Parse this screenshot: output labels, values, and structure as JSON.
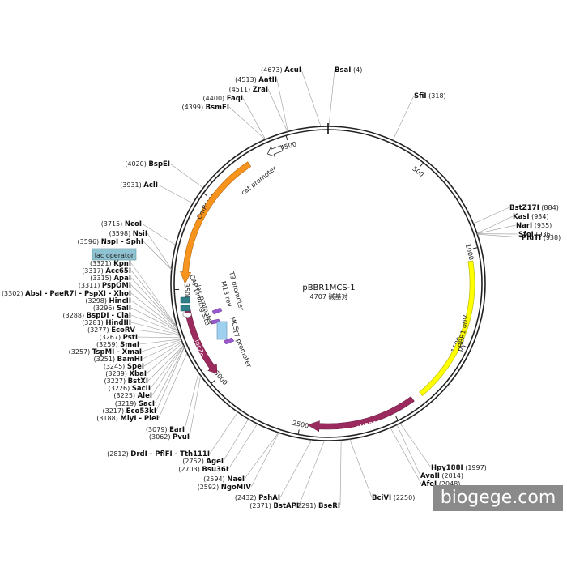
{
  "plasmid": {
    "name": "pBBR1MCS-1",
    "size_label": "4707 碱基对",
    "length": 4707
  },
  "ticks": [
    {
      "label": "500",
      "pos": 500
    },
    {
      "label": "1000",
      "pos": 1000
    },
    {
      "label": "1500",
      "pos": 1500
    },
    {
      "label": "2000",
      "pos": 2000
    },
    {
      "label": "2500",
      "pos": 2500
    },
    {
      "label": "3000",
      "pos": 3000
    },
    {
      "label": "3500",
      "pos": 3500
    },
    {
      "label": "4000",
      "pos": 4000
    },
    {
      "label": "4500",
      "pos": 4500
    }
  ],
  "sites": [
    {
      "name": "AcuI",
      "pos": "(4673)"
    },
    {
      "name": "BsaI",
      "pos": "(4)"
    },
    {
      "name": "AatII",
      "pos": "(4513)"
    },
    {
      "name": "ZraI",
      "pos": "(4511)"
    },
    {
      "name": "FaqI",
      "pos": "(4400)"
    },
    {
      "name": "BsmFI",
      "pos": "(4399)"
    },
    {
      "name": "SfiI",
      "pos": "(318)"
    },
    {
      "name": "BspEI",
      "pos": "(4020)"
    },
    {
      "name": "AclI",
      "pos": "(3931)"
    },
    {
      "name": "BstZ17I",
      "pos": "(884)"
    },
    {
      "name": "KasI",
      "pos": "(934)"
    },
    {
      "name": "NarI",
      "pos": "(935)"
    },
    {
      "name": "SfoI",
      "pos": "(936)"
    },
    {
      "name": "PluTI",
      "pos": "(938)"
    },
    {
      "name": "NcoI",
      "pos": "(3715)"
    },
    {
      "name": "NsiI",
      "pos": "(3598)"
    },
    {
      "name": "NspI - SphI",
      "pos": "(3596)"
    },
    {
      "name": "KpnI",
      "pos": "(3321)"
    },
    {
      "name": "Acc65I",
      "pos": "(3317)"
    },
    {
      "name": "ApaI",
      "pos": "(3315)"
    },
    {
      "name": "PspOMI",
      "pos": "(3311)"
    },
    {
      "name": "AbsI - PaeR7I - PspXI - XhoI",
      "pos": "(3302)"
    },
    {
      "name": "HincII",
      "pos": "(3298)"
    },
    {
      "name": "SalI",
      "pos": "(3296)"
    },
    {
      "name": "BspDI - ClaI",
      "pos": "(3288)"
    },
    {
      "name": "HindIII",
      "pos": "(3281)"
    },
    {
      "name": "EcoRV",
      "pos": "(3277)"
    },
    {
      "name": "PstI",
      "pos": "(3267)"
    },
    {
      "name": "SmaI",
      "pos": "(3259)"
    },
    {
      "name": "TspMI - XmaI",
      "pos": "(3257)"
    },
    {
      "name": "BamHI",
      "pos": "(3251)"
    },
    {
      "name": "SpeI",
      "pos": "(3245)"
    },
    {
      "name": "XbaI",
      "pos": "(3239)"
    },
    {
      "name": "BstXI",
      "pos": "(3227)"
    },
    {
      "name": "SacII",
      "pos": "(3226)"
    },
    {
      "name": "AleI",
      "pos": "(3225)"
    },
    {
      "name": "SacI",
      "pos": "(3219)"
    },
    {
      "name": "Eco53kI",
      "pos": "(3217)"
    },
    {
      "name": "MlyI - PleI",
      "pos": "(3188)"
    },
    {
      "name": "EarI",
      "pos": "(3079)"
    },
    {
      "name": "PvuI",
      "pos": "(3062)"
    },
    {
      "name": "DrdI - PflFI - Tth111I",
      "pos": "(2812)"
    },
    {
      "name": "AgeI",
      "pos": "(2752)"
    },
    {
      "name": "Bsu36I",
      "pos": "(2703)"
    },
    {
      "name": "NaeI",
      "pos": "(2594)"
    },
    {
      "name": "NgoMIV",
      "pos": "(2592)"
    },
    {
      "name": "PshAI",
      "pos": "(2432)"
    },
    {
      "name": "BstAPI",
      "pos": "(2371)"
    },
    {
      "name": "BseRI",
      "pos": "(2291)"
    },
    {
      "name": "BciVI",
      "pos": "(2250)"
    },
    {
      "name": "AfeI",
      "pos": "(2048)"
    },
    {
      "name": "AvaII",
      "pos": "(2014)"
    },
    {
      "name": "Hpy188I",
      "pos": "(1997)"
    }
  ],
  "features": {
    "cmr": {
      "label": "CmR",
      "color": "#f7941d"
    },
    "cat_promoter": {
      "label": "cat promoter",
      "color": "#ffffff"
    },
    "lac_operator": {
      "label": "lac operator",
      "color": "#8fc3d1"
    },
    "lacz": {
      "label": "lacZα",
      "color": "#9b2a5e"
    },
    "rep": {
      "label": "pBBR1 Rep",
      "color": "#9b2a5e"
    },
    "oriv": {
      "label": "pBBR1 oriV",
      "color": "#ffff00"
    },
    "cap_site": {
      "label": "CAP binding site"
    },
    "lac_promoter": {
      "label": "lac promoter"
    },
    "t3_promoter": {
      "label": "T3 promoter"
    },
    "m13_rev": {
      "label": "M13 rev"
    },
    "mcs": {
      "label": "MCS",
      "color": "#9fd0ef"
    },
    "t7_promoter": {
      "label": "T7 promoter"
    }
  },
  "watermark": {
    "text": "biogege.com"
  }
}
